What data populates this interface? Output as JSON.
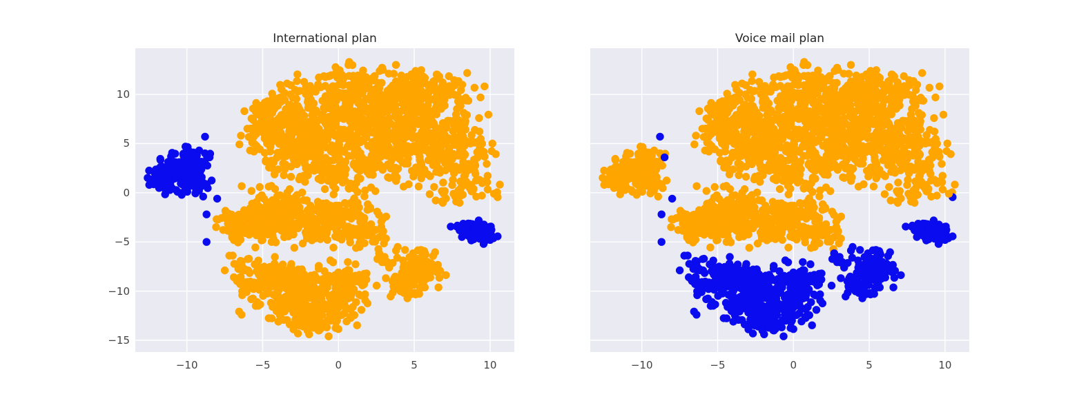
{
  "figure": {
    "background": "#ffffff",
    "panel_background": "#eaeaf2",
    "grid_color": "#ffffff",
    "tick_label_color": "#424242",
    "title_color": "#262626",
    "colors": {
      "orange": "#ffa500",
      "blue": "#0b0bef"
    }
  },
  "chart_data": {
    "type": "scatter",
    "description": "Two scatter panels of the same 2-D t-SNE embedding; point colors differ per panel (orange vs blue cluster membership).",
    "grid": true,
    "legend": false,
    "xlim": [
      -13.4,
      11.6
    ],
    "ylim": [
      -16.2,
      14.7
    ],
    "x_ticks": [
      -10,
      -5,
      0,
      5,
      10
    ],
    "y_ticks": [
      10,
      5,
      0,
      -5,
      -10,
      -15
    ],
    "marker_radius_px": 5.7,
    "panels": [
      {
        "title": "International plan",
        "y_tick_labels": true
      },
      {
        "title": "Voice mail plan",
        "y_tick_labels": false
      }
    ],
    "clusters": [
      {
        "id": "main-top-blob",
        "panel_colors": [
          "orange",
          "orange"
        ],
        "blobs": [
          {
            "cx": 1.0,
            "cy": 7.0,
            "sx": 3.2,
            "sy": 2.4,
            "n": 420
          },
          {
            "cx": 4.5,
            "cy": 6.2,
            "sx": 2.6,
            "sy": 2.5,
            "n": 260
          },
          {
            "cx": -2.2,
            "cy": 5.0,
            "sx": 1.7,
            "sy": 1.8,
            "n": 150
          },
          {
            "cx": 2.0,
            "cy": 10.6,
            "sx": 2.8,
            "sy": 1.2,
            "n": 150
          },
          {
            "cx": 7.4,
            "cy": 3.2,
            "sx": 1.4,
            "sy": 1.8,
            "n": 110
          },
          {
            "cx": -3.6,
            "cy": 7.4,
            "sx": 1.2,
            "sy": 1.4,
            "n": 80
          },
          {
            "cx": 0.2,
            "cy": 2.2,
            "sx": 2.2,
            "sy": 1.1,
            "n": 95
          },
          {
            "cx": 8.3,
            "cy": 0.8,
            "sx": 1.0,
            "sy": 0.9,
            "n": 40
          },
          {
            "cx": 6.0,
            "cy": 9.6,
            "sx": 1.6,
            "sy": 1.3,
            "n": 80
          },
          {
            "cx": -4.8,
            "cy": 5.8,
            "sx": 0.8,
            "sy": 1.0,
            "n": 35
          }
        ]
      },
      {
        "id": "middle-band",
        "panel_colors": [
          "orange",
          "orange"
        ],
        "blobs": [
          {
            "cx": -4.6,
            "cy": -2.0,
            "sx": 1.5,
            "sy": 1.2,
            "n": 170
          },
          {
            "cx": -2.0,
            "cy": -3.3,
            "sx": 1.5,
            "sy": 1.1,
            "n": 150
          },
          {
            "cx": -6.1,
            "cy": -3.4,
            "sx": 0.9,
            "sy": 0.9,
            "n": 65
          },
          {
            "cx": 0.3,
            "cy": -2.2,
            "sx": 1.2,
            "sy": 1.0,
            "n": 90
          },
          {
            "cx": 1.6,
            "cy": -4.0,
            "sx": 0.8,
            "sy": 0.8,
            "n": 45
          }
        ]
      },
      {
        "id": "bottom-blob",
        "panel_colors": [
          "orange",
          "blue"
        ],
        "blobs": [
          {
            "cx": -3.0,
            "cy": -10.0,
            "sx": 1.6,
            "sy": 1.5,
            "n": 185
          },
          {
            "cx": -1.0,
            "cy": -11.4,
            "sx": 1.6,
            "sy": 1.3,
            "n": 155
          },
          {
            "cx": -4.6,
            "cy": -8.6,
            "sx": 1.0,
            "sy": 0.9,
            "n": 60
          },
          {
            "cx": 0.8,
            "cy": -9.0,
            "sx": 1.0,
            "sy": 1.0,
            "n": 60
          },
          {
            "cx": -2.0,
            "cy": -13.2,
            "sx": 1.2,
            "sy": 0.7,
            "n": 40
          },
          {
            "cx": -6.2,
            "cy": -7.9,
            "sx": 0.6,
            "sy": 0.7,
            "n": 15
          }
        ],
        "pts": [
          [
            -7.5,
            -7.9
          ],
          [
            -6.9,
            -8.6
          ],
          [
            -7.2,
            -6.4
          ]
        ]
      },
      {
        "id": "small-bottom-blob",
        "panel_colors": [
          "orange",
          "blue"
        ],
        "blobs": [
          {
            "cx": 5.2,
            "cy": -7.9,
            "sx": 0.95,
            "sy": 1.05,
            "n": 115
          },
          {
            "cx": 4.3,
            "cy": -9.7,
            "sx": 0.7,
            "sy": 0.7,
            "n": 35
          },
          {
            "cx": 3.1,
            "cy": -6.9,
            "sx": 0.45,
            "sy": 0.45,
            "n": 12
          }
        ]
      },
      {
        "id": "left-small-cluster",
        "panel_colors": [
          "blue",
          "orange"
        ],
        "blobs": [
          {
            "cx": -10.5,
            "cy": 2.0,
            "sx": 0.95,
            "sy": 1.1,
            "n": 115
          },
          {
            "cx": -9.5,
            "cy": 3.4,
            "sx": 0.6,
            "sy": 0.75,
            "n": 40
          },
          {
            "cx": -11.6,
            "cy": 1.5,
            "sx": 0.55,
            "sy": 0.7,
            "n": 28
          },
          {
            "cx": -9.9,
            "cy": 0.7,
            "sx": 0.55,
            "sy": 0.5,
            "n": 18
          }
        ]
      },
      {
        "id": "right-small-cluster",
        "panel_colors": [
          "blue",
          "blue"
        ],
        "blobs": [
          {
            "cx": 8.8,
            "cy": -3.7,
            "sx": 0.62,
            "sy": 0.58,
            "n": 70
          },
          {
            "cx": 9.7,
            "cy": -4.3,
            "sx": 0.4,
            "sy": 0.4,
            "n": 16
          }
        ]
      },
      {
        "id": "isolated-trail",
        "panel_colors": [
          "blue",
          "blue"
        ],
        "pts": [
          [
            -8.0,
            -0.6
          ],
          [
            -8.7,
            -2.2
          ],
          [
            -8.7,
            -5.0
          ]
        ]
      },
      {
        "id": "left-cluster-top-dots",
        "panel_colors": [
          "blue",
          "blue"
        ],
        "pts": [
          [
            -8.8,
            5.7
          ],
          [
            -8.5,
            3.6
          ]
        ]
      },
      {
        "id": "right-edge-dot-under",
        "panel_colors": [
          "orange",
          "blue"
        ],
        "pts": [
          [
            10.5,
            -0.45
          ]
        ]
      },
      {
        "id": "right-edge-outlier",
        "panel_colors": [
          "orange",
          "orange"
        ],
        "pts": [
          [
            10.25,
            -0.1
          ]
        ]
      }
    ]
  }
}
